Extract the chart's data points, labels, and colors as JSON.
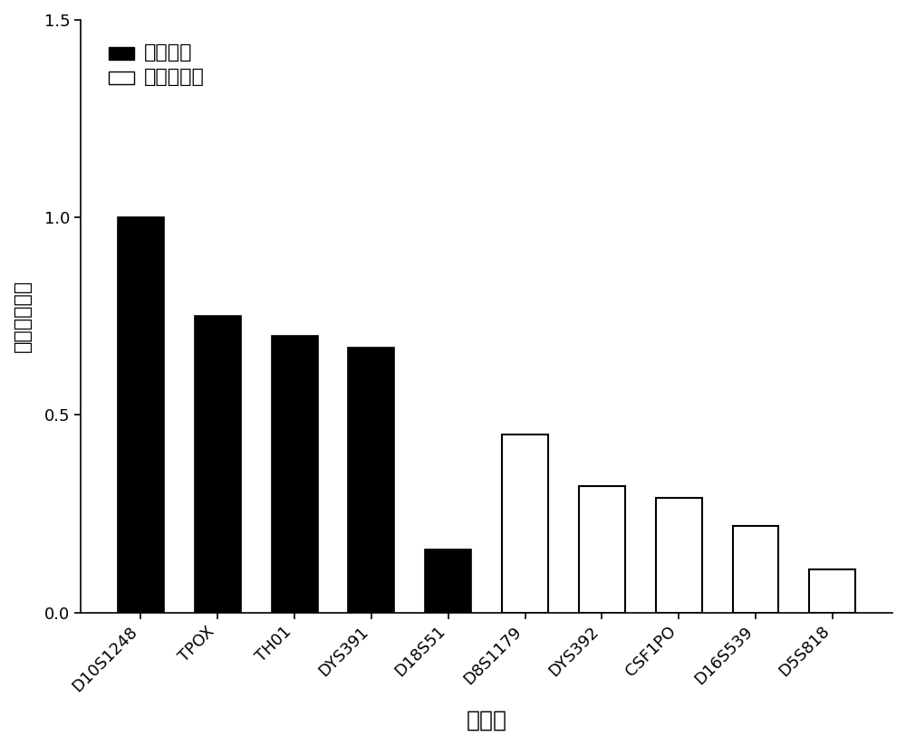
{
  "categories": [
    "D10S1248",
    "TPOX",
    "TH01",
    "DYS391",
    "D18S51",
    "D8S1179",
    "DYS392",
    "CSF1PO",
    "D16S539",
    "D5S818"
  ],
  "values": [
    1.0,
    0.75,
    0.7,
    0.67,
    0.16,
    0.45,
    0.32,
    0.29,
    0.22,
    0.11
  ],
  "bar_types": [
    "black",
    "black",
    "black",
    "black",
    "black",
    "white",
    "white",
    "white",
    "white",
    "white"
  ],
  "black_color": "#000000",
  "white_color": "#ffffff",
  "edge_color": "#000000",
  "xlabel": "基因座",
  "ylabel": "基因座检出率",
  "ylim": [
    0,
    1.5
  ],
  "yticks": [
    0.0,
    0.5,
    1.0,
    1.5
  ],
  "legend_labels": [
    "核小体组",
    "非核小体组"
  ],
  "legend_colors": [
    "#000000",
    "#ffffff"
  ],
  "bar_width": 0.6,
  "figure_width": 10.0,
  "figure_height": 8.23,
  "background_color": "#ffffff",
  "xlabel_fontsize": 18,
  "ylabel_fontsize": 16,
  "tick_fontsize": 13,
  "legend_fontsize": 16,
  "xtick_fontsize": 13
}
